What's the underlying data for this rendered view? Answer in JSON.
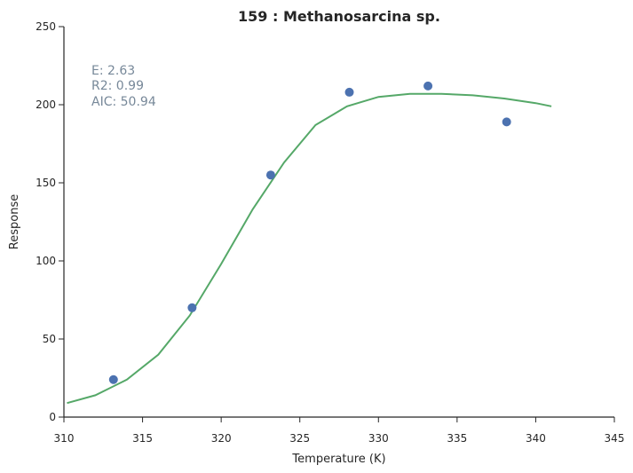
{
  "chart_data": {
    "type": "scatter",
    "title": "159 : Methanosarcina sp.",
    "xlabel": "Temperature (K)",
    "ylabel": "Response",
    "xlim": [
      310,
      345
    ],
    "ylim": [
      0,
      250
    ],
    "xticks": [
      310,
      315,
      320,
      325,
      330,
      335,
      340,
      345
    ],
    "yticks": [
      0,
      50,
      100,
      150,
      200,
      250
    ],
    "grid": false,
    "annotations": {
      "e": "E:  2.63",
      "r2": "R2:  0.99",
      "aic": "AIC: 50.94"
    },
    "series": [
      {
        "kind": "points",
        "color": "#4C72B0",
        "x": [
          313.15,
          318.15,
          323.15,
          328.15,
          333.15,
          338.15
        ],
        "y": [
          24,
          70,
          155,
          208,
          212,
          189
        ]
      },
      {
        "kind": "line",
        "color": "#55A868",
        "x": [
          310.2,
          312,
          314,
          316,
          318,
          320,
          322,
          324,
          326,
          328,
          330,
          332,
          334,
          336,
          338,
          340,
          341
        ],
        "y": [
          9,
          14,
          24,
          40,
          65,
          98,
          133,
          163,
          187,
          199,
          205,
          207,
          207,
          206,
          204,
          201,
          199
        ]
      }
    ]
  }
}
